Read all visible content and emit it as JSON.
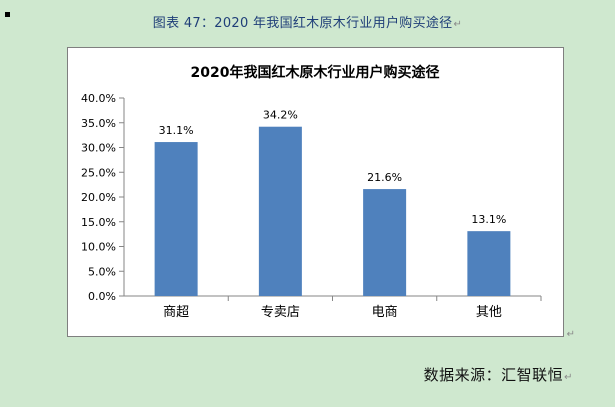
{
  "document": {
    "caption": "图表 47：2020 年我国红木原木行业用户购买途径",
    "source": "数据来源：汇智联恒",
    "paragraph_mark": "↵"
  },
  "chart_data": {
    "type": "bar",
    "title": "2020年我国红木原木行业用户购买途径",
    "categories": [
      "商超",
      "专卖店",
      "电商",
      "其他"
    ],
    "values": [
      31.1,
      34.2,
      21.6,
      13.1
    ],
    "value_labels": [
      "31.1%",
      "34.2%",
      "21.6%",
      "13.1%"
    ],
    "y_ticks": [
      "0.0%",
      "5.0%",
      "10.0%",
      "15.0%",
      "20.0%",
      "25.0%",
      "30.0%",
      "35.0%",
      "40.0%"
    ],
    "ylim": [
      0,
      40
    ],
    "grid": false,
    "legend": "none",
    "bar_color": "#4f81bd"
  }
}
